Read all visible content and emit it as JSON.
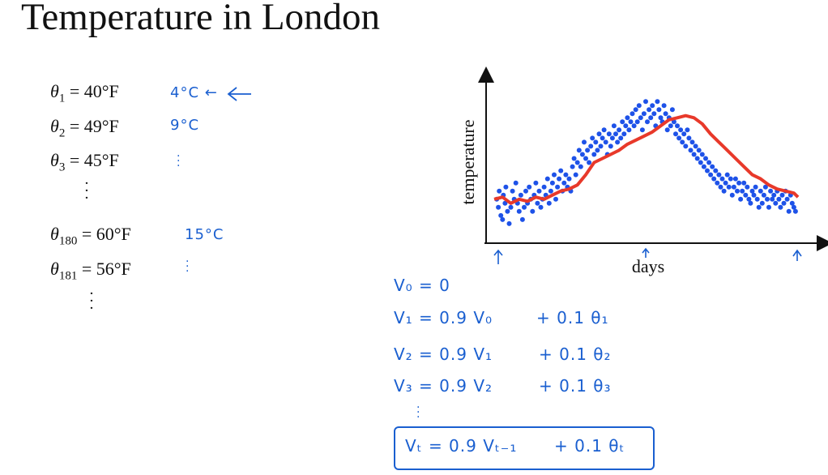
{
  "slide": {
    "title": "Temperature in London"
  },
  "equations": [
    {
      "sub": "1",
      "value": "= 40°F",
      "note": "4°C ←"
    },
    {
      "sub": "2",
      "value": "= 49°F",
      "note": "9°C"
    },
    {
      "sub": "3",
      "value": "= 45°F",
      "note": ""
    },
    {
      "sub": "180",
      "value": "= 60°F",
      "note": "15°C"
    },
    {
      "sub": "181",
      "value": "= 56°F",
      "note": ""
    }
  ],
  "theta_symbol": "θ",
  "handwriting": {
    "v0": "V₀ = 0",
    "v1": "V₁ = 0.9 V₀",
    "v1_rhs": "+ 0.1 θ₁",
    "v2": "V₂ = 0.9 V₁",
    "v2_rhs": "+ 0.1 θ₂",
    "v3": "V₃ = 0.9 V₂",
    "v3_rhs": "+ 0.1 θ₃",
    "vt": "Vₜ = 0.9 Vₜ₋₁",
    "vt_rhs": "+ 0.1 θₜ"
  },
  "chart_data": {
    "type": "scatter",
    "xlabel": "days",
    "ylabel": "temperature",
    "grid": false,
    "colors": {
      "points": "#1e52e8",
      "line": "#e8392a",
      "axis": "#111111"
    },
    "series": [
      {
        "kind": "scatter",
        "x": [
          3,
          5,
          6,
          8,
          10,
          11,
          13,
          14,
          16,
          18,
          20,
          22,
          24,
          26,
          28,
          30,
          32,
          34,
          36,
          38,
          40,
          42,
          44,
          46,
          48,
          50,
          52,
          54,
          56,
          58,
          60,
          62,
          64,
          66,
          68,
          70,
          72,
          74,
          76,
          78,
          80,
          82,
          84,
          86,
          88,
          90,
          92,
          94,
          96,
          98,
          100,
          102,
          104,
          106,
          108,
          110,
          112,
          114,
          116,
          118,
          120,
          122,
          124,
          126,
          128,
          130,
          132,
          134,
          136,
          138,
          140,
          142,
          144,
          146,
          148,
          150,
          152,
          154,
          156,
          158,
          160,
          162,
          164,
          166,
          168,
          170,
          172,
          174,
          176,
          178,
          180,
          182,
          184,
          186,
          188,
          190,
          192,
          194,
          196,
          198,
          200,
          202,
          204,
          206,
          208,
          210,
          212,
          214,
          216,
          218,
          220,
          222,
          224,
          226,
          228,
          230,
          232,
          234,
          236,
          238,
          240,
          242,
          244,
          246,
          248,
          250,
          252,
          254,
          256,
          258,
          260,
          262,
          264,
          266,
          268,
          270,
          272,
          274,
          276,
          278,
          280,
          282,
          284,
          286,
          288,
          290,
          292,
          294,
          296,
          298,
          300,
          302,
          304,
          306,
          308,
          310,
          312,
          314,
          316,
          318,
          320,
          322,
          324,
          326,
          328,
          330,
          332,
          334,
          336,
          338,
          340,
          342,
          344,
          346,
          348,
          350,
          352,
          354,
          356,
          358,
          360,
          362
        ],
        "y": [
          40,
          36,
          44,
          32,
          30,
          42,
          38,
          46,
          34,
          28,
          36,
          44,
          40,
          48,
          38,
          34,
          42,
          30,
          36,
          44,
          38,
          46,
          40,
          34,
          42,
          48,
          38,
          44,
          36,
          40,
          46,
          42,
          50,
          38,
          44,
          48,
          52,
          40,
          46,
          50,
          54,
          44,
          48,
          52,
          46,
          50,
          44,
          56,
          60,
          52,
          58,
          64,
          56,
          62,
          68,
          60,
          64,
          58,
          66,
          70,
          62,
          68,
          64,
          72,
          66,
          70,
          74,
          68,
          62,
          72,
          66,
          70,
          76,
          72,
          68,
          74,
          70,
          78,
          72,
          76,
          80,
          74,
          78,
          82,
          76,
          84,
          78,
          86,
          80,
          74,
          82,
          88,
          78,
          84,
          80,
          86,
          82,
          76,
          88,
          84,
          80,
          78,
          86,
          82,
          74,
          80,
          76,
          84,
          78,
          72,
          76,
          70,
          74,
          68,
          72,
          66,
          74,
          70,
          64,
          68,
          62,
          66,
          60,
          64,
          58,
          62,
          56,
          60,
          54,
          58,
          52,
          56,
          50,
          54,
          48,
          52,
          46,
          50,
          44,
          48,
          52,
          46,
          50,
          42,
          46,
          50,
          44,
          48,
          40,
          44,
          48,
          42,
          46,
          40,
          38,
          44,
          42,
          46,
          40,
          36,
          44,
          38,
          42,
          46,
          40,
          36,
          44,
          40,
          42,
          38,
          44,
          40,
          36,
          42,
          38,
          44,
          40,
          34,
          42,
          38,
          36,
          34
        ]
      },
      {
        "kind": "line",
        "x": [
          0,
          10,
          20,
          30,
          40,
          50,
          60,
          70,
          80,
          90,
          100,
          110,
          120,
          130,
          140,
          150,
          160,
          170,
          180,
          190,
          200,
          210,
          220,
          230,
          240,
          250,
          260,
          270,
          280,
          290,
          300,
          310,
          320,
          330,
          340,
          350,
          360,
          365
        ],
        "y": [
          40,
          41,
          38,
          40,
          39,
          41,
          40,
          42,
          44,
          45,
          47,
          52,
          58,
          60,
          62,
          64,
          67,
          69,
          71,
          73,
          76,
          79,
          80,
          81,
          80,
          77,
          72,
          68,
          64,
          60,
          56,
          52,
          50,
          47,
          45,
          44,
          43,
          41
        ]
      }
    ],
    "xlim": [
      0,
      365
    ],
    "ylim": [
      20,
      100
    ]
  }
}
